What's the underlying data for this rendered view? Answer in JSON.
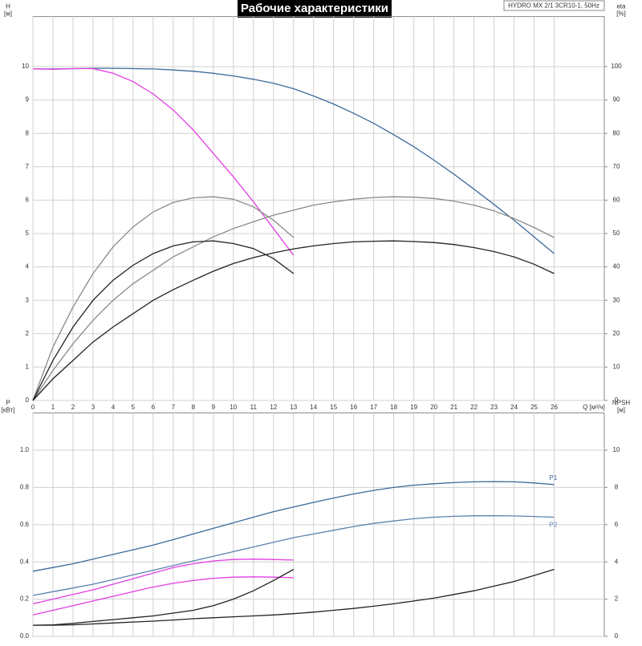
{
  "chart_data": [
    {
      "type": "line",
      "title": "Рабочие характеристики",
      "subtitle": "HYDRO MX 2/1 3CR10-1, 50Hz",
      "ylabel": "H",
      "yunit": "[м]",
      "y2label": "eta",
      "y2unit": "[%]",
      "xlabel": "Q [м³/ч]",
      "x": [
        0,
        1,
        2,
        3,
        4,
        5,
        6,
        7,
        8,
        9,
        10,
        11,
        12,
        13,
        14,
        15,
        16,
        17,
        18,
        19,
        20,
        21,
        22,
        23,
        24,
        25,
        26
      ],
      "xlim": [
        0,
        28.5
      ],
      "xticks": [
        0,
        1,
        2,
        3,
        4,
        5,
        6,
        7,
        8,
        9,
        10,
        11,
        12,
        13,
        14,
        15,
        16,
        17,
        18,
        19,
        20,
        21,
        22,
        23,
        24,
        25,
        26
      ],
      "ylim": [
        0,
        11.5
      ],
      "yticks": [
        0,
        1,
        2,
        3,
        4,
        5,
        6,
        7,
        8,
        9,
        10
      ],
      "y2lim": [
        0,
        115
      ],
      "y2ticks": [
        0,
        10,
        20,
        30,
        40,
        50,
        60,
        70,
        80,
        90,
        100
      ],
      "grid": true,
      "series": [
        {
          "color": "#3c6a9a",
          "values": [
            9.93,
            9.93,
            9.94,
            9.95,
            9.95,
            9.94,
            9.93,
            9.9,
            9.86,
            9.8,
            9.72,
            9.62,
            9.5,
            9.34,
            9.12,
            8.88,
            8.6,
            8.3,
            7.96,
            7.6,
            7.2,
            6.78,
            6.33,
            5.87,
            5.4,
            4.9,
            4.4
          ]
        },
        {
          "color": "#e23ee2",
          "values": [
            9.93,
            9.92,
            9.94,
            9.94,
            9.8,
            9.55,
            9.18,
            8.7,
            8.1,
            7.4,
            6.7,
            5.95,
            5.15,
            4.35,
            null,
            null,
            null,
            null,
            null,
            null,
            null,
            null,
            null,
            null,
            null,
            null,
            null
          ]
        },
        {
          "color": "#8a8a8a",
          "axis": "y2",
          "values": [
            0,
            16,
            28,
            38,
            46,
            52,
            56.5,
            59.3,
            60.7,
            61,
            60.3,
            58,
            54,
            48.8,
            null,
            null,
            null,
            null,
            null,
            null,
            null,
            null,
            null,
            null,
            null,
            null,
            null
          ]
        },
        {
          "color": "#8a8a8a",
          "axis": "y2",
          "values": [
            0,
            9,
            17,
            24,
            30,
            35,
            39,
            43,
            46,
            49,
            51.5,
            53.5,
            55.5,
            57,
            58.5,
            59.5,
            60.3,
            60.8,
            61,
            60.9,
            60.5,
            59.7,
            58.5,
            56.8,
            54.5,
            51.8,
            48.8
          ]
        },
        {
          "color": "#222222",
          "axis": "y2",
          "values": [
            0,
            12,
            22,
            30,
            36,
            40.5,
            44,
            46.3,
            47.5,
            47.8,
            47,
            45.5,
            42.5,
            38,
            null,
            null,
            null,
            null,
            null,
            null,
            null,
            null,
            null,
            null,
            null,
            null,
            null
          ]
        },
        {
          "color": "#222222",
          "axis": "y2",
          "values": [
            0,
            6.5,
            12,
            17.5,
            22,
            26,
            30,
            33.2,
            36,
            38.7,
            41,
            42.8,
            44.2,
            45.4,
            46.3,
            47,
            47.5,
            47.7,
            47.8,
            47.6,
            47.3,
            46.7,
            45.8,
            44.6,
            43,
            40.8,
            38
          ]
        }
      ]
    },
    {
      "type": "line",
      "ylabel": "P",
      "yunit": "[кВт]",
      "y2label": "NPSH",
      "y2unit": "[м]",
      "x": [
        0,
        1,
        2,
        3,
        4,
        5,
        6,
        7,
        8,
        9,
        10,
        11,
        12,
        13,
        14,
        15,
        16,
        17,
        18,
        19,
        20,
        21,
        22,
        23,
        24,
        25,
        26
      ],
      "xlim": [
        0,
        28.5
      ],
      "ylim": [
        0,
        1.2
      ],
      "yticks": [
        {
          "value": 0,
          "label": "0.0"
        },
        0.2,
        0.4,
        0.6,
        0.8,
        {
          "value": 1,
          "label": "1.0"
        }
      ],
      "y2lim": [
        0,
        12
      ],
      "y2ticks": [
        0,
        2,
        4,
        6,
        8,
        10
      ],
      "grid": true,
      "series": [
        {
          "name": "P1",
          "color": "#3c6a9a",
          "values": [
            0.35,
            0.37,
            0.39,
            0.415,
            0.44,
            0.465,
            0.49,
            0.52,
            0.55,
            0.58,
            0.61,
            0.64,
            0.67,
            0.695,
            0.72,
            0.743,
            0.765,
            0.784,
            0.8,
            0.812,
            0.82,
            0.826,
            0.83,
            0.831,
            0.83,
            0.824,
            0.815
          ]
        },
        {
          "name": "P2",
          "color": "#5b82ad",
          "values": [
            0.22,
            0.24,
            0.26,
            0.28,
            0.305,
            0.33,
            0.355,
            0.38,
            0.405,
            0.43,
            0.455,
            0.48,
            0.505,
            0.53,
            0.55,
            0.57,
            0.59,
            0.607,
            0.62,
            0.632,
            0.64,
            0.645,
            0.648,
            0.648,
            0.647,
            0.644,
            0.64
          ]
        },
        {
          "color": "#e23ee2",
          "values": [
            0.175,
            0.2,
            0.225,
            0.25,
            0.28,
            0.31,
            0.34,
            0.37,
            0.39,
            0.405,
            0.413,
            0.415,
            0.413,
            0.41,
            null,
            null,
            null,
            null,
            null,
            null,
            null,
            null,
            null,
            null,
            null,
            null,
            null
          ]
        },
        {
          "color": "#e23ee2",
          "values": [
            0.115,
            0.14,
            0.165,
            0.19,
            0.215,
            0.24,
            0.265,
            0.285,
            0.3,
            0.312,
            0.318,
            0.32,
            0.318,
            0.315,
            null,
            null,
            null,
            null,
            null,
            null,
            null,
            null,
            null,
            null,
            null,
            null,
            null
          ]
        },
        {
          "color": "#222222",
          "axis": "y2",
          "values": [
            0.6,
            0.62,
            0.7,
            0.8,
            0.9,
            1,
            1.1,
            1.25,
            1.4,
            1.65,
            2,
            2.45,
            3,
            3.6,
            null,
            null,
            null,
            null,
            null,
            null,
            null,
            null,
            null,
            null,
            null,
            null,
            null
          ]
        },
        {
          "color": "#222222",
          "axis": "y2",
          "values": [
            0.6,
            0.6,
            0.62,
            0.67,
            0.72,
            0.77,
            0.82,
            0.88,
            0.95,
            1,
            1.05,
            1.1,
            1.15,
            1.22,
            1.3,
            1.4,
            1.5,
            1.62,
            1.75,
            1.9,
            2.05,
            2.25,
            2.45,
            2.7,
            2.95,
            3.27,
            3.6
          ]
        }
      ]
    }
  ]
}
